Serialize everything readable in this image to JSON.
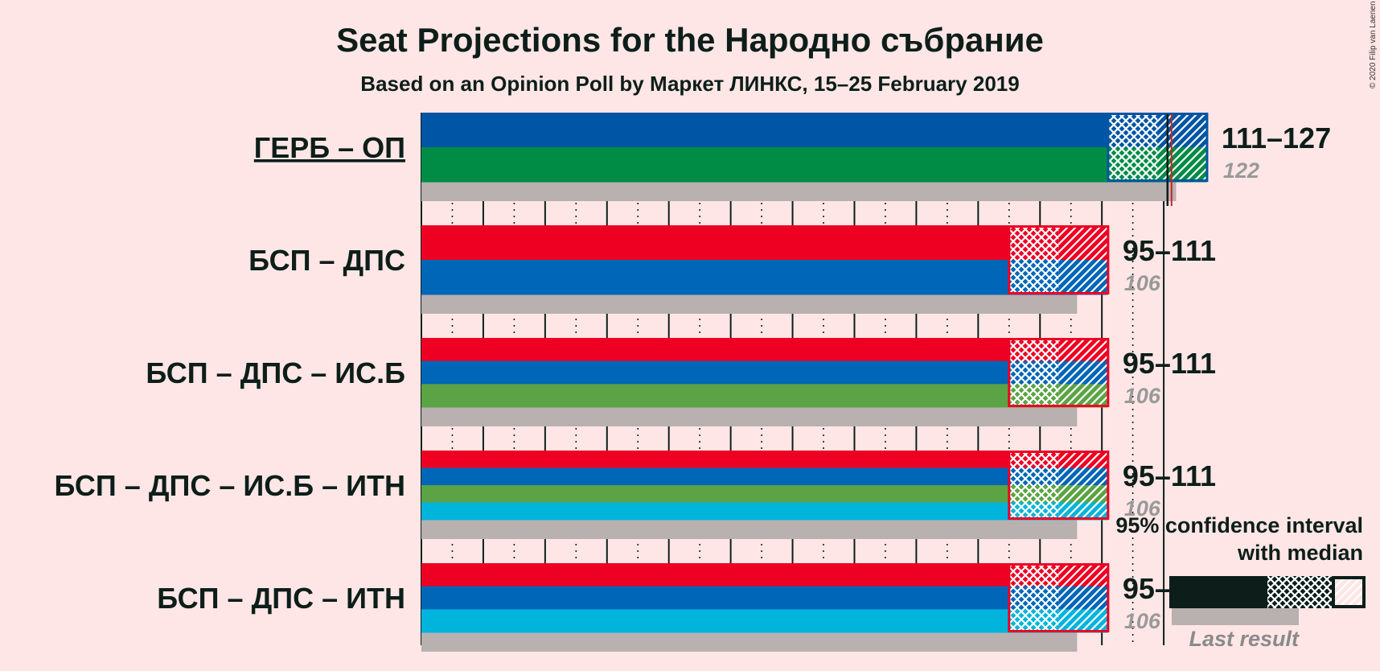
{
  "title": "Seat Projections for the Народно събрание",
  "subtitle": "Based on an Opinion Poll by Маркет ЛИНКС, 15–25 February 2019",
  "copyright": "© 2020 Filip van Laenen",
  "legend": {
    "line1": "95% confidence interval",
    "line2": "with median",
    "last_result": "Last result"
  },
  "chart_data": {
    "type": "bar",
    "orientation": "horizontal",
    "title": "Seat Projections for the Народно събрание",
    "subtitle": "Based on an Opinion Poll by Маркет ЛИНКС, 15–25 February 2019",
    "xlim": [
      0,
      130
    ],
    "tick_step": 5,
    "majority_line": 121,
    "categories": [
      "ГЕРБ – ОП",
      "БСП – ДПС",
      "БСП – ДПС – ИС.Б",
      "БСП – ДПС – ИС.Б – ИТН",
      "БСП – ДПС – ИТН"
    ],
    "series": [
      {
        "label": "ГЕРБ – ОП",
        "underlined": true,
        "ci95_low": 111,
        "ci80_low": 111,
        "ci80_high": 119,
        "ci95_high": 127,
        "median": 122,
        "range_label": "111–127",
        "last_result": 122,
        "median_label": "122",
        "colors": [
          "#0055A4",
          "#008C45"
        ]
      },
      {
        "label": "БСП – ДПС",
        "ci95_low": 95,
        "ci80_low": 95,
        "ci80_high": 103,
        "ci95_high": 111,
        "median": 106,
        "range_label": "95–111",
        "last_result": 106,
        "median_label": "106",
        "colors": [
          "#EE0022",
          "#0066B8"
        ]
      },
      {
        "label": "БСП – ДПС – ИС.Б",
        "ci95_low": 95,
        "ci80_low": 95,
        "ci80_high": 103,
        "ci95_high": 111,
        "median": 106,
        "range_label": "95–111",
        "last_result": 106,
        "median_label": "106",
        "colors": [
          "#EE0022",
          "#0066B8",
          "#5BA344"
        ]
      },
      {
        "label": "БСП – ДПС – ИС.Б – ИТН",
        "ci95_low": 95,
        "ci80_low": 95,
        "ci80_high": 103,
        "ci95_high": 111,
        "median": 106,
        "range_label": "95–111",
        "last_result": 106,
        "median_label": "106",
        "colors": [
          "#EE0022",
          "#0066B8",
          "#5BA344",
          "#00B4DC"
        ]
      },
      {
        "label": "БСП – ДПС – ИТН",
        "ci95_low": 95,
        "ci80_low": 95,
        "ci80_high": 103,
        "ci95_high": 111,
        "median": 106,
        "range_label": "95–111",
        "last_result": 106,
        "median_label": "106",
        "colors": [
          "#EE0022",
          "#0066B8",
          "#00B4DC"
        ]
      }
    ]
  }
}
